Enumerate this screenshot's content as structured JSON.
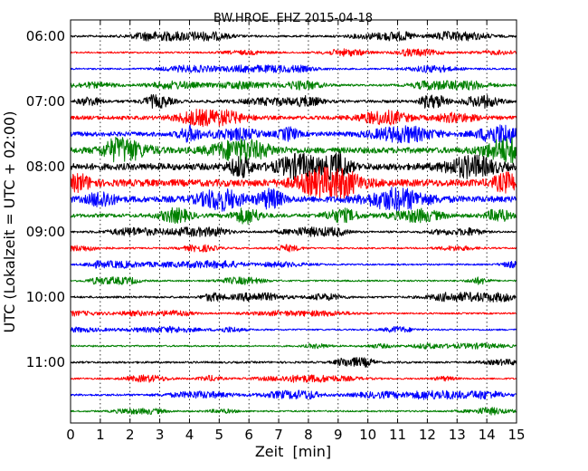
{
  "chart_data": {
    "type": "line",
    "title": "BW.HROE..EHZ 2015-04-18",
    "xlabel": "Zeit  [min]",
    "ylabel": "UTC (Lokalzeit = UTC + 02:00)",
    "xlim": [
      0,
      15
    ],
    "x_ticks": [
      "0",
      "1",
      "2",
      "3",
      "4",
      "5",
      "6",
      "7",
      "8",
      "9",
      "10",
      "11",
      "12",
      "13",
      "14",
      "15"
    ],
    "y_ticks": [
      "06:00",
      "07:00",
      "08:00",
      "09:00",
      "10:00",
      "11:00"
    ],
    "grid": true,
    "colors": [
      "#000000",
      "#ff0000",
      "#0000ff",
      "#008000"
    ],
    "series": [
      {
        "start": "06:00",
        "color": "#000000",
        "amplitude": 0.25
      },
      {
        "start": "06:15",
        "color": "#ff0000",
        "amplitude": 0.2
      },
      {
        "start": "06:30",
        "color": "#0000ff",
        "amplitude": 0.2
      },
      {
        "start": "06:45",
        "color": "#008000",
        "amplitude": 0.25
      },
      {
        "start": "07:00",
        "color": "#000000",
        "amplitude": 0.35
      },
      {
        "start": "07:15",
        "color": "#ff0000",
        "amplitude": 0.45
      },
      {
        "start": "07:30",
        "color": "#0000ff",
        "amplitude": 0.55
      },
      {
        "start": "07:45",
        "color": "#008000",
        "amplitude": 0.7
      },
      {
        "start": "08:00",
        "color": "#000000",
        "amplitude": 0.8
      },
      {
        "start": "08:15",
        "color": "#ff0000",
        "amplitude": 0.85
      },
      {
        "start": "08:30",
        "color": "#0000ff",
        "amplitude": 0.75
      },
      {
        "start": "08:45",
        "color": "#008000",
        "amplitude": 0.45
      },
      {
        "start": "09:00",
        "color": "#000000",
        "amplitude": 0.25
      },
      {
        "start": "09:15",
        "color": "#ff0000",
        "amplitude": 0.2
      },
      {
        "start": "09:30",
        "color": "#0000ff",
        "amplitude": 0.2
      },
      {
        "start": "09:45",
        "color": "#008000",
        "amplitude": 0.2
      },
      {
        "start": "10:00",
        "color": "#000000",
        "amplitude": 0.25
      },
      {
        "start": "10:15",
        "color": "#ff0000",
        "amplitude": 0.2
      },
      {
        "start": "10:30",
        "color": "#0000ff",
        "amplitude": 0.2
      },
      {
        "start": "10:45",
        "color": "#008000",
        "amplitude": 0.2
      },
      {
        "start": "11:00",
        "color": "#000000",
        "amplitude": 0.25
      },
      {
        "start": "11:15",
        "color": "#ff0000",
        "amplitude": 0.2
      },
      {
        "start": "11:30",
        "color": "#0000ff",
        "amplitude": 0.25
      },
      {
        "start": "11:45",
        "color": "#008000",
        "amplitude": 0.2
      }
    ]
  }
}
